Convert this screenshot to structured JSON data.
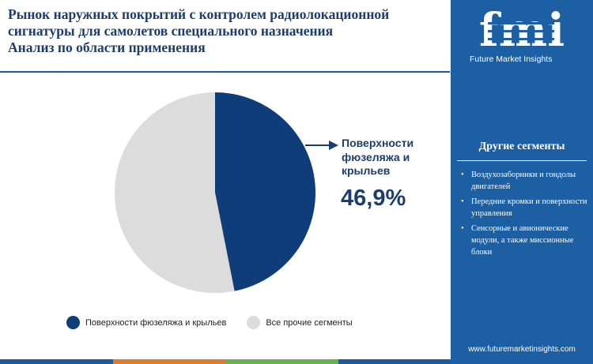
{
  "title": {
    "line1": "Рынок наружных покрытий с контролем радиолокационной",
    "line2": "сигнатуры для самолетов специального назначения",
    "line3": "Анализ по области применения"
  },
  "chart_data": {
    "type": "pie",
    "slices": [
      {
        "label": "Поверхности фюзеляжа и крыльев",
        "value": 46.9,
        "color": "#0e3d79"
      },
      {
        "label": "Все прочие сегменты",
        "value": 53.1,
        "color": "#dcdcdc"
      }
    ],
    "start_angle": "12 o'clock",
    "direction": "clockwise",
    "legend_position": "bottom",
    "callout": {
      "label": "Поверхности фюзеляжа и крыльев",
      "value_text": "46,9%"
    }
  },
  "callout_text": {
    "label": "Поверхности фюзеляжа и крыльев",
    "value": "46,9%"
  },
  "legend": [
    {
      "label": "Поверхности фюзеляжа и крыльев",
      "color": "#0e3d79"
    },
    {
      "label": "Все прочие сегменты",
      "color": "#dcdcdc"
    }
  ],
  "bottom_bar_colors": [
    "#1e5aa0",
    "#e07b2a",
    "#6ab04c",
    "#1e5aa0"
  ],
  "sidebar": {
    "logo_text": "fmi",
    "logo_subtitle": "Future Market Insights",
    "heading": "Другие сегменты",
    "items": [
      "Воздухозаборники и гондолы двигателей",
      "Передние кромки и поверхности управления",
      "Сенсорные и авионические модули, а также миссионные блоки"
    ],
    "url": "www.futuremarketinsights.com",
    "background": "#1d5fa3"
  }
}
